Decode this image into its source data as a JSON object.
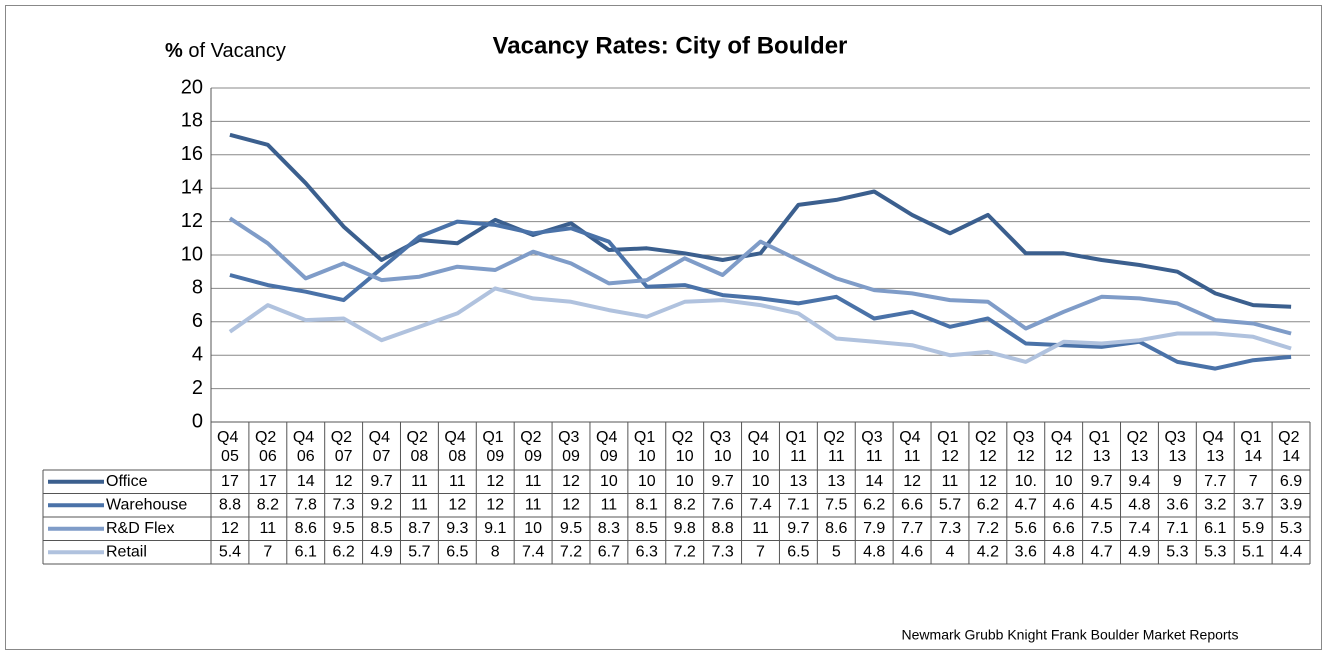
{
  "chart_data": {
    "type": "line",
    "title": "Vacancy Rates: City of Boulder",
    "y_label": "% of Vacancy",
    "source": "Newmark Grubb Knight Frank Boulder Market Reports",
    "categories": [
      "Q4 05",
      "Q2 06",
      "Q4 06",
      "Q2 07",
      "Q4 07",
      "Q2 08",
      "Q4 08",
      "Q1 09",
      "Q2 09",
      "Q3 09",
      "Q4 09",
      "Q1 10",
      "Q2 10",
      "Q3 10",
      "Q4 10",
      "Q1 11",
      "Q2 11",
      "Q3 11",
      "Q4 11",
      "Q1 12",
      "Q2 12",
      "Q3 12",
      "Q4 12",
      "Q1 13",
      "Q2 13",
      "Q3 13",
      "Q4 13",
      "Q1 14",
      "Q2 14"
    ],
    "ylim": [
      0,
      20
    ],
    "yticks": [
      0,
      2,
      4,
      6,
      8,
      10,
      12,
      14,
      16,
      18,
      20
    ],
    "grid": true,
    "series": [
      {
        "name": "Office",
        "color": "#3b5f8e",
        "values": [
          17.2,
          16.6,
          14.3,
          11.7,
          9.7,
          10.9,
          10.7,
          12.1,
          11.2,
          11.9,
          10.3,
          10.4,
          10.1,
          9.7,
          10.1,
          13.0,
          13.3,
          13.8,
          12.4,
          11.3,
          12.4,
          10.1,
          10.1,
          9.7,
          9.4,
          9.0,
          7.7,
          7.0,
          6.9
        ],
        "value_labels": [
          "17",
          "17",
          "14",
          "12",
          "9.7",
          "11",
          "11",
          "12",
          "11",
          "12",
          "10",
          "10",
          "10",
          "9.7",
          "10",
          "13",
          "13",
          "14",
          "12",
          "11",
          "12",
          "10.",
          "10",
          "9.7",
          "9.4",
          "9",
          "7.7",
          "7",
          "6.9"
        ]
      },
      {
        "name": "Warehouse",
        "color": "#4a72a8",
        "values": [
          8.8,
          8.2,
          7.8,
          7.3,
          9.2,
          11.1,
          12.0,
          11.8,
          11.3,
          11.6,
          10.8,
          8.1,
          8.2,
          7.6,
          7.4,
          7.1,
          7.5,
          6.2,
          6.6,
          5.7,
          6.2,
          4.7,
          4.6,
          4.5,
          4.8,
          3.6,
          3.2,
          3.7,
          3.9
        ],
        "value_labels": [
          "8.8",
          "8.2",
          "7.8",
          "7.3",
          "9.2",
          "11",
          "12",
          "12",
          "11",
          "12",
          "11",
          "8.1",
          "8.2",
          "7.6",
          "7.4",
          "7.1",
          "7.5",
          "6.2",
          "6.6",
          "5.7",
          "6.2",
          "4.7",
          "4.6",
          "4.5",
          "4.8",
          "3.6",
          "3.2",
          "3.7",
          "3.9"
        ]
      },
      {
        "name": "R&D Flex",
        "color": "#7f9cc8",
        "values": [
          12.2,
          10.7,
          8.6,
          9.5,
          8.5,
          8.7,
          9.3,
          9.1,
          10.2,
          9.5,
          8.3,
          8.5,
          9.8,
          8.8,
          10.8,
          9.7,
          8.6,
          7.9,
          7.7,
          7.3,
          7.2,
          5.6,
          6.6,
          7.5,
          7.4,
          7.1,
          6.1,
          5.9,
          5.3
        ],
        "value_labels": [
          "12",
          "11",
          "8.6",
          "9.5",
          "8.5",
          "8.7",
          "9.3",
          "9.1",
          "10",
          "9.5",
          "8.3",
          "8.5",
          "9.8",
          "8.8",
          "11",
          "9.7",
          "8.6",
          "7.9",
          "7.7",
          "7.3",
          "7.2",
          "5.6",
          "6.6",
          "7.5",
          "7.4",
          "7.1",
          "6.1",
          "5.9",
          "5.3"
        ]
      },
      {
        "name": "Retail",
        "color": "#b0c2de",
        "values": [
          5.4,
          7,
          6.1,
          6.2,
          4.9,
          5.7,
          6.5,
          8,
          7.4,
          7.2,
          6.7,
          6.3,
          7.2,
          7.3,
          7,
          6.5,
          5,
          4.8,
          4.6,
          4,
          4.2,
          3.6,
          4.8,
          4.7,
          4.9,
          5.3,
          5.3,
          5.1,
          4.4
        ]
      }
    ]
  }
}
